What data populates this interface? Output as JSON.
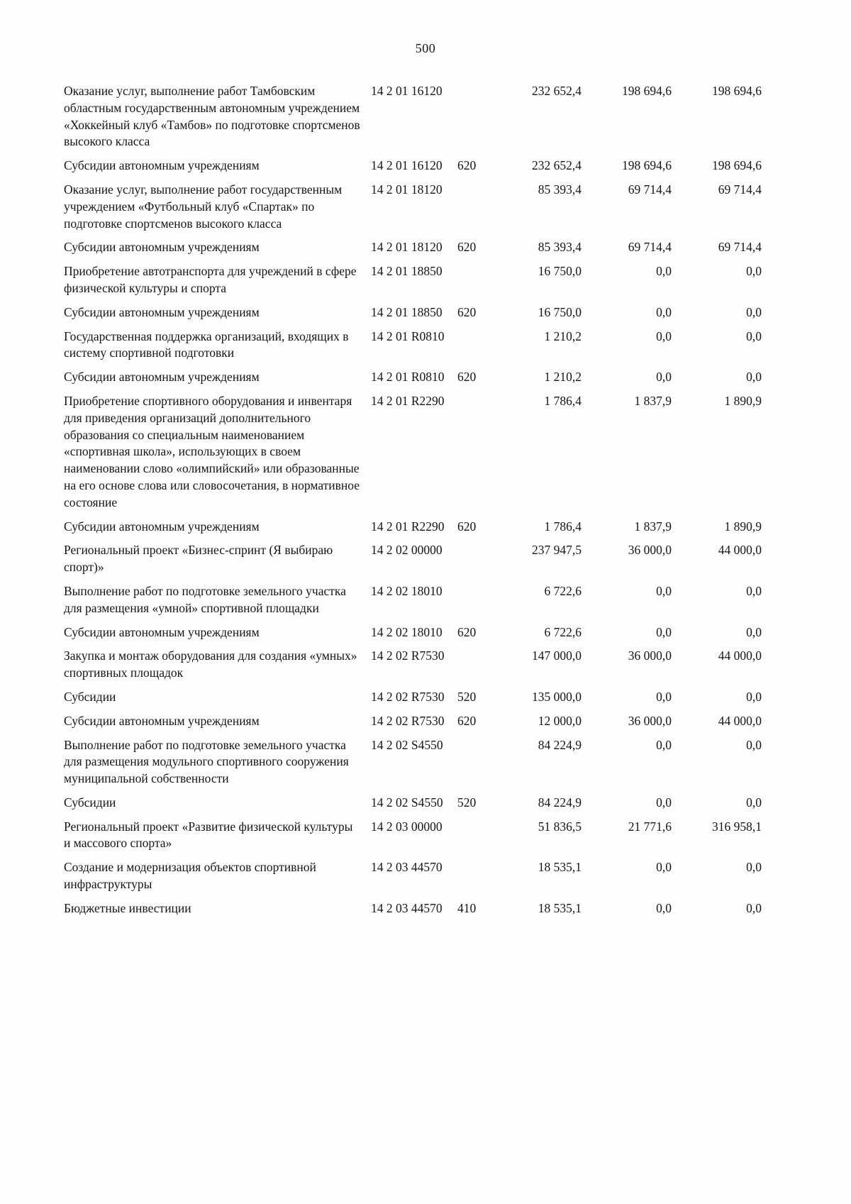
{
  "page": {
    "number": "500"
  },
  "table": {
    "rows": [
      {
        "name": "Оказание услуг, выполнение работ Тамбовским областным государственным автономным учреждением «Хоккейный клуб «Тамбов» по подготовке спортсменов высокого класса",
        "code": "14 2 01 16120",
        "type": "",
        "a1": "232 652,4",
        "a2": "198 694,6",
        "a3": "198 694,6"
      },
      {
        "name": "Субсидии автономным учреждениям",
        "code": "14 2 01 16120",
        "type": "620",
        "a1": "232 652,4",
        "a2": "198 694,6",
        "a3": "198 694,6"
      },
      {
        "name": "Оказание услуг, выполнение работ государственным учреждением «Футбольный клуб «Спартак» по подготовке спортсменов высокого класса",
        "code": "14 2 01 18120",
        "type": "",
        "a1": "85 393,4",
        "a2": "69 714,4",
        "a3": "69 714,4"
      },
      {
        "name": "Субсидии автономным учреждениям",
        "code": "14 2 01 18120",
        "type": "620",
        "a1": "85 393,4",
        "a2": "69 714,4",
        "a3": "69 714,4"
      },
      {
        "name": "Приобретение автотранспорта для учреждений в сфере физической культуры и спорта",
        "code": "14 2 01 18850",
        "type": "",
        "a1": "16 750,0",
        "a2": "0,0",
        "a3": "0,0"
      },
      {
        "name": "Субсидии автономным учреждениям",
        "code": "14 2 01 18850",
        "type": "620",
        "a1": "16 750,0",
        "a2": "0,0",
        "a3": "0,0"
      },
      {
        "name": "Государственная поддержка организаций, входящих в систему спортивной подготовки",
        "code": "14 2 01 R0810",
        "type": "",
        "a1": "1 210,2",
        "a2": "0,0",
        "a3": "0,0"
      },
      {
        "name": "Субсидии автономным учреждениям",
        "code": "14 2 01 R0810",
        "type": "620",
        "a1": "1 210,2",
        "a2": "0,0",
        "a3": "0,0"
      },
      {
        "name": "Приобретение спортивного оборудования и инвентаря для приведения организаций дополнительного образования со специальным наименованием «спортивная школа», использующих в своем наименовании слово «олимпийский» или образованные на его основе слова или словосочетания, в нормативное состояние",
        "code": "14 2 01 R2290",
        "type": "",
        "a1": "1 786,4",
        "a2": "1 837,9",
        "a3": "1 890,9"
      },
      {
        "name": "Субсидии автономным учреждениям",
        "code": "14 2 01 R2290",
        "type": "620",
        "a1": "1 786,4",
        "a2": "1 837,9",
        "a3": "1 890,9"
      },
      {
        "name": "Региональный проект «Бизнес-спринт (Я выбираю спорт)»",
        "code": "14 2 02 00000",
        "type": "",
        "a1": "237 947,5",
        "a2": "36 000,0",
        "a3": "44 000,0"
      },
      {
        "name": "Выполнение работ по подготовке земельного участка для размещения «умной» спортивной площадки",
        "code": "14 2 02 18010",
        "type": "",
        "a1": "6 722,6",
        "a2": "0,0",
        "a3": "0,0"
      },
      {
        "name": "Субсидии автономным учреждениям",
        "code": "14 2 02 18010",
        "type": "620",
        "a1": "6 722,6",
        "a2": "0,0",
        "a3": "0,0"
      },
      {
        "name": "Закупка и монтаж оборудования для создания «умных» спортивных площадок",
        "code": "14 2 02 R7530",
        "type": "",
        "a1": "147 000,0",
        "a2": "36 000,0",
        "a3": "44 000,0"
      },
      {
        "name": "Субсидии",
        "code": "14 2 02 R7530",
        "type": "520",
        "a1": "135 000,0",
        "a2": "0,0",
        "a3": "0,0"
      },
      {
        "name": "Субсидии автономным учреждениям",
        "code": "14 2 02 R7530",
        "type": "620",
        "a1": "12 000,0",
        "a2": "36 000,0",
        "a3": "44 000,0"
      },
      {
        "name": "Выполнение работ по подготовке земельного участка для размещения модульного спортивного сооружения муниципальной собственности",
        "code": "14 2 02 S4550",
        "type": "",
        "a1": "84 224,9",
        "a2": "0,0",
        "a3": "0,0"
      },
      {
        "name": "Субсидии",
        "code": "14 2 02 S4550",
        "type": "520",
        "a1": "84 224,9",
        "a2": "0,0",
        "a3": "0,0"
      },
      {
        "name": "Региональный проект «Развитие физической культуры и массового спорта»",
        "code": "14 2 03 00000",
        "type": "",
        "a1": "51 836,5",
        "a2": "21 771,6",
        "a3": "316 958,1"
      },
      {
        "name": "Создание и модернизация объектов спортивной инфраструктуры",
        "code": "14 2 03 44570",
        "type": "",
        "a1": "18 535,1",
        "a2": "0,0",
        "a3": "0,0"
      },
      {
        "name": "Бюджетные инвестиции",
        "code": "14 2 03 44570",
        "type": "410",
        "a1": "18 535,1",
        "a2": "0,0",
        "a3": "0,0"
      }
    ]
  }
}
